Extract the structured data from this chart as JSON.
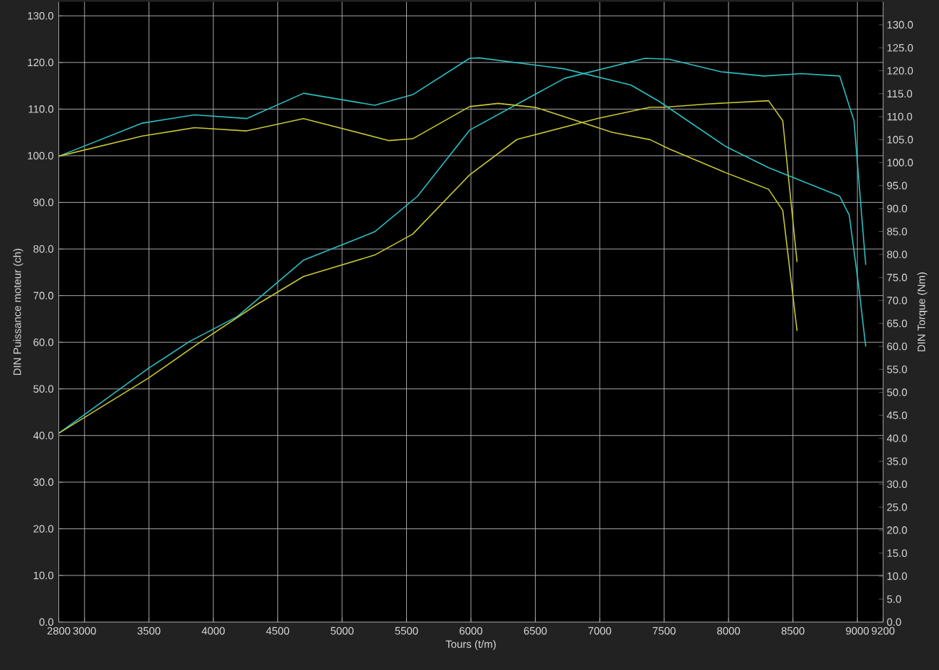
{
  "chart_data": {
    "type": "line",
    "xlabel": "Tours (t/m)",
    "ylabel": "DIN Puissance moteur (ch)",
    "y2label": "DIN Torque (Nm)",
    "xlim": [
      2800,
      9200
    ],
    "xticks": [
      2800,
      3000,
      3500,
      4000,
      4500,
      5000,
      5500,
      6000,
      6500,
      7000,
      7500,
      8000,
      8500,
      9000,
      9200
    ],
    "ylim": [
      0,
      133
    ],
    "yticks": [
      {
        "value": 0,
        "label": "0.0"
      },
      {
        "value": 10,
        "label": "10.0"
      },
      {
        "value": 20,
        "label": "20.0"
      },
      {
        "value": 30,
        "label": "30.0"
      },
      {
        "value": 40,
        "label": "40.0"
      },
      {
        "value": 50,
        "label": "50.0"
      },
      {
        "value": 60,
        "label": "60.0"
      },
      {
        "value": 70,
        "label": "70.0"
      },
      {
        "value": 80,
        "label": "80.0"
      },
      {
        "value": 90,
        "label": "90.0"
      },
      {
        "value": 100,
        "label": "100.0"
      },
      {
        "value": 110,
        "label": "110.0"
      },
      {
        "value": 120,
        "label": "120.0"
      },
      {
        "value": 130,
        "label": "130.0"
      }
    ],
    "y2lim": [
      0,
      135
    ],
    "y2ticks": [
      {
        "value": 0,
        "label": "0.0"
      },
      {
        "value": 5,
        "label": "5.0"
      },
      {
        "value": 10,
        "label": "10.0"
      },
      {
        "value": 15,
        "label": "15.0"
      },
      {
        "value": 20,
        "label": "20.0"
      },
      {
        "value": 25,
        "label": "25.0"
      },
      {
        "value": 30,
        "label": "30.0"
      },
      {
        "value": 35,
        "label": "35.0"
      },
      {
        "value": 40,
        "label": "40.0"
      },
      {
        "value": 45,
        "label": "45.0"
      },
      {
        "value": 50,
        "label": "50.0"
      },
      {
        "value": 55,
        "label": "55.0"
      },
      {
        "value": 60,
        "label": "60.0"
      },
      {
        "value": 65,
        "label": "65.0"
      },
      {
        "value": 70,
        "label": "70.0"
      },
      {
        "value": 75,
        "label": "75.0"
      },
      {
        "value": 80,
        "label": "80.0"
      },
      {
        "value": 85,
        "label": "85.0"
      },
      {
        "value": 90,
        "label": "90.0"
      },
      {
        "value": 95,
        "label": "95.0"
      },
      {
        "value": 100,
        "label": "100.0"
      },
      {
        "value": 105,
        "label": "105.0"
      },
      {
        "value": 110,
        "label": "110.0"
      },
      {
        "value": 115,
        "label": "115.0"
      },
      {
        "value": 120,
        "label": "120.0"
      },
      {
        "value": 125,
        "label": "125.0"
      },
      {
        "value": 130,
        "label": "130.0"
      }
    ],
    "grid": true,
    "marker": "none",
    "line_style": "solid",
    "series": [
      {
        "color": "#2bc0c4",
        "axis": "y2",
        "x": [
          2800,
          3449,
          3854,
          4259,
          4700,
          5253,
          5548,
          5990,
          6064,
          6727,
          7242,
          7463,
          7979,
          8311,
          8863,
          8937,
          9010,
          9065
        ],
        "values": [
          101.4,
          108.6,
          110.4,
          109.6,
          115.1,
          112.5,
          114.8,
          122.7,
          122.8,
          120.4,
          116.9,
          113.3,
          103.5,
          98.9,
          92.7,
          88.6,
          73.2,
          60
        ]
      },
      {
        "color": "#c8c832",
        "axis": "y2",
        "x": [
          2800,
          3449,
          3854,
          4259,
          4700,
          5364,
          5548,
          5990,
          6211,
          6506,
          7096,
          7391,
          7538,
          7979,
          8311,
          8421,
          8532
        ],
        "values": [
          101.4,
          105.8,
          107.6,
          106.9,
          109.6,
          104.8,
          105.2,
          112.2,
          112.9,
          112,
          106.6,
          105,
          103,
          97.8,
          94.2,
          89.6,
          63.4
        ]
      },
      {
        "color": "#2bc0c4",
        "axis": "y",
        "x": [
          2800,
          3496,
          3817,
          4186,
          4700,
          5253,
          5585,
          5990,
          6727,
          7352,
          7538,
          7943,
          8274,
          8568,
          8863,
          8974,
          9065
        ],
        "values": [
          40.5,
          54.4,
          60.2,
          65.5,
          77.6,
          83.7,
          91.3,
          105.5,
          116.6,
          120.9,
          120.7,
          118,
          117.1,
          117.6,
          117.1,
          107.5,
          76.6
        ]
      },
      {
        "color": "#c8c832",
        "axis": "y",
        "x": [
          2800,
          3496,
          3891,
          4333,
          4700,
          5253,
          5548,
          5990,
          6358,
          6985,
          7391,
          7501,
          7832,
          8311,
          8421,
          8532
        ],
        "values": [
          40.5,
          52.3,
          59.9,
          68,
          74.1,
          78.7,
          83.2,
          95.9,
          103.5,
          108,
          110.4,
          110.4,
          111.1,
          111.8,
          107.5,
          77.2
        ]
      }
    ]
  }
}
